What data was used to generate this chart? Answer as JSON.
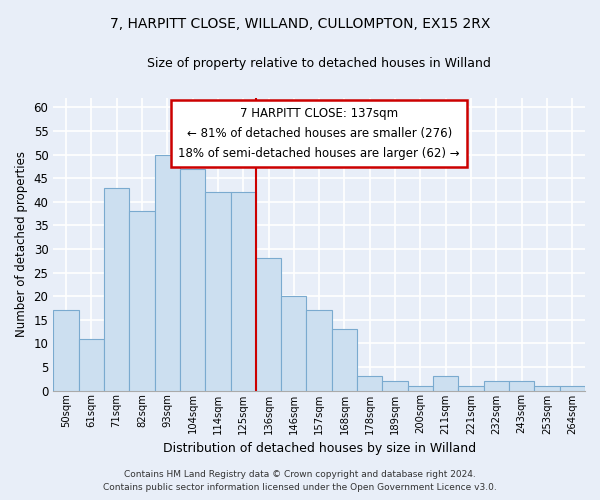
{
  "title1": "7, HARPITT CLOSE, WILLAND, CULLOMPTON, EX15 2RX",
  "title2": "Size of property relative to detached houses in Willand",
  "xlabel": "Distribution of detached houses by size in Willand",
  "ylabel": "Number of detached properties",
  "bar_labels": [
    "50sqm",
    "61sqm",
    "71sqm",
    "82sqm",
    "93sqm",
    "104sqm",
    "114sqm",
    "125sqm",
    "136sqm",
    "146sqm",
    "157sqm",
    "168sqm",
    "178sqm",
    "189sqm",
    "200sqm",
    "211sqm",
    "221sqm",
    "232sqm",
    "243sqm",
    "253sqm",
    "264sqm"
  ],
  "bar_values": [
    17,
    11,
    43,
    38,
    50,
    47,
    42,
    42,
    28,
    20,
    17,
    13,
    3,
    2,
    1,
    3,
    1,
    2,
    2,
    1,
    1
  ],
  "bar_color": "#ccdff0",
  "bar_edge_color": "#7aaacf",
  "vline_color": "#cc0000",
  "annotation_title": "7 HARPITT CLOSE: 137sqm",
  "annotation_line1": "← 81% of detached houses are smaller (276)",
  "annotation_line2": "18% of semi-detached houses are larger (62) →",
  "annotation_box_color": "#ffffff",
  "annotation_box_edge": "#cc0000",
  "ylim_max": 62,
  "yticks": [
    0,
    5,
    10,
    15,
    20,
    25,
    30,
    35,
    40,
    45,
    50,
    55,
    60
  ],
  "footer1": "Contains HM Land Registry data © Crown copyright and database right 2024.",
  "footer2": "Contains public sector information licensed under the Open Government Licence v3.0.",
  "bg_color": "#e8eef8",
  "grid_color": "#ffffff"
}
